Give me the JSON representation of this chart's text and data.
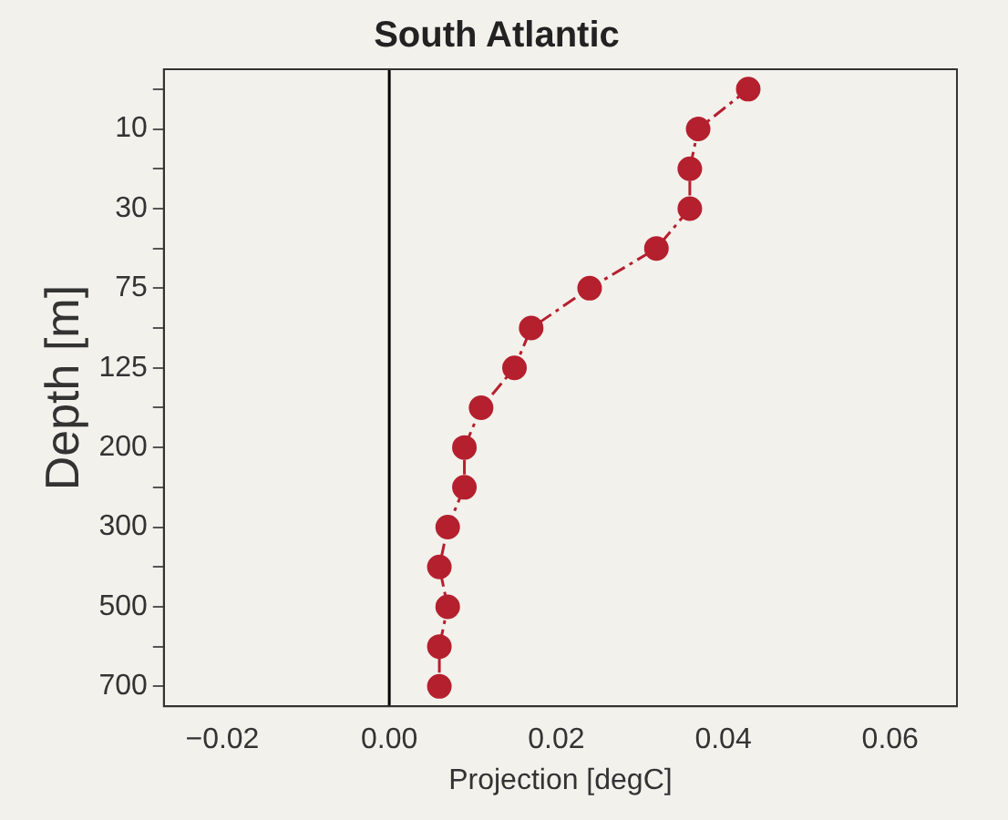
{
  "chart_data": {
    "type": "line",
    "title": "South Atlantic",
    "xlabel": "Projection [degC]",
    "ylabel": "Depth [m]",
    "orientation": "horizontal",
    "categories": [
      null,
      "10",
      null,
      "30",
      null,
      "75",
      null,
      "125",
      null,
      "200",
      null,
      "300",
      null,
      "500",
      null,
      "700"
    ],
    "series": [
      {
        "color": "#b5202e",
        "values": [
          0.043,
          0.037,
          0.036,
          0.036,
          0.032,
          0.024,
          0.017,
          0.015,
          0.011,
          0.009,
          0.009,
          0.007,
          0.006,
          0.007,
          0.006,
          0.006
        ]
      }
    ],
    "xlim": [
      -0.027,
      0.068
    ],
    "xticks": [
      {
        "value": -0.02,
        "label": "−0.02"
      },
      {
        "value": 0,
        "label": "0.00"
      },
      {
        "value": 0.02,
        "label": "0.02"
      },
      {
        "value": 0.04,
        "label": "0.04"
      },
      {
        "value": 0.06,
        "label": "0.06"
      }
    ],
    "ref_lines": [
      {
        "axis": "x",
        "value": 0,
        "color": "#000000"
      }
    ],
    "grid": false,
    "legend": false,
    "marker": "circle",
    "line_style": "dashed"
  }
}
